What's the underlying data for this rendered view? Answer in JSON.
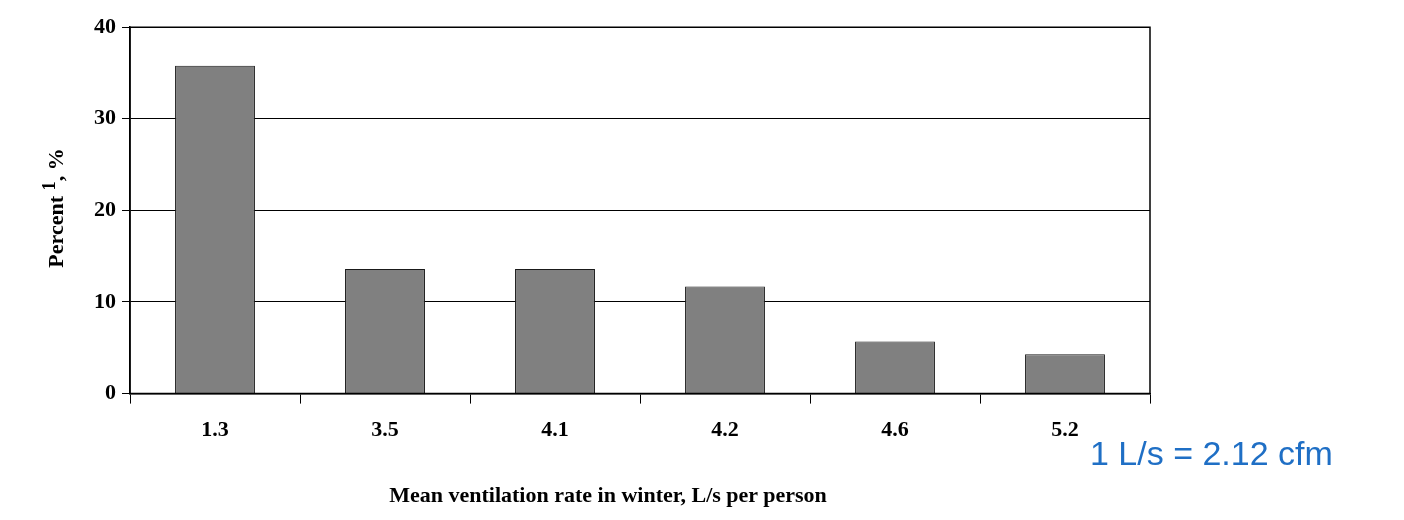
{
  "chart_data": {
    "type": "bar",
    "xlabel": "Mean ventilation rate in winter, L/s per person",
    "ylabel": "Percent $^{1}$, %",
    "categories": [
      "1.3",
      "3.5",
      "4.1",
      "4.2",
      "4.6",
      "5.2"
    ],
    "values": [
      35.8,
      13.6,
      13.6,
      11.7,
      5.7,
      4.3
    ],
    "color": "#808080",
    "ylim": [
      0,
      40
    ],
    "yticks": [
      0,
      10,
      20,
      30,
      40
    ],
    "grid": "y",
    "annotations": [
      "1 L/s = 2.12 cfm"
    ]
  }
}
